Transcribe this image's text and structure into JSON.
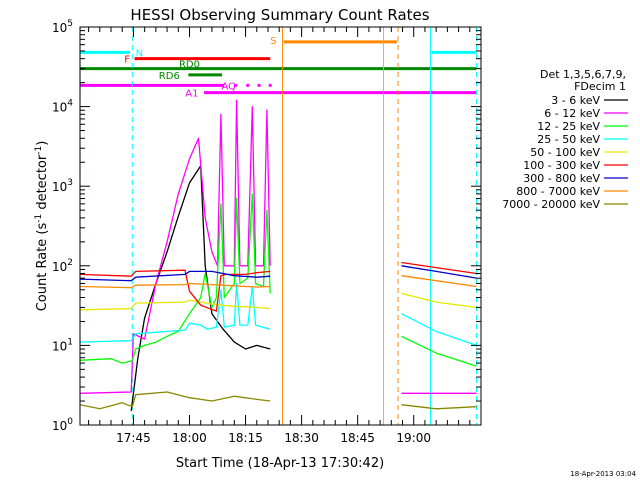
{
  "chart_data": {
    "type": "line",
    "title": "HESSI Observing Summary Count Rates",
    "xlabel": "Start Time (18-Apr-13 17:30:42)",
    "ylabel": "Count Rate (s⁻¹ detector⁻¹)",
    "ylabel_prefix": "Count Rate (s",
    "ylabel_mid": " detector",
    "ylabel_suffix": ")",
    "ylabel_sup": "-1",
    "yscale": "log",
    "ylim": [
      1,
      100000
    ],
    "xlim": [
      17.5117,
      19.3
    ],
    "grid": false,
    "x_ticks": [
      {
        "value": 17.75,
        "label": "17:45"
      },
      {
        "value": 18.0,
        "label": "18:00"
      },
      {
        "value": 18.25,
        "label": "18:15"
      },
      {
        "value": 18.5,
        "label": "18:30"
      },
      {
        "value": 18.75,
        "label": "18:45"
      },
      {
        "value": 19.0,
        "label": "19:00"
      }
    ],
    "y_ticks": [
      {
        "value": 1,
        "base": "10",
        "exp": "0"
      },
      {
        "value": 10,
        "base": "10",
        "exp": "1"
      },
      {
        "value": 100,
        "base": "10",
        "exp": "2"
      },
      {
        "value": 1000,
        "base": "10",
        "exp": "3"
      },
      {
        "value": 10000,
        "base": "10",
        "exp": "4"
      },
      {
        "value": 100000,
        "base": "10",
        "exp": "5"
      }
    ],
    "legend": {
      "placement": "right",
      "header": [
        "Det 1,3,5,6,7,9,",
        "FDecim 1"
      ],
      "entries": [
        {
          "label": "3 - 6 keV",
          "color": "#000000"
        },
        {
          "label": "6 - 12 keV",
          "color": "#ff00ff"
        },
        {
          "label": "12 - 25 keV",
          "color": "#00ff00"
        },
        {
          "label": "25 - 50 keV",
          "color": "#00ffff"
        },
        {
          "label": "50 - 100 keV",
          "color": "#e6e600"
        },
        {
          "label": "100 - 300 keV",
          "color": "#ff0000"
        },
        {
          "label": "300 - 800 keV",
          "color": "#0000cc"
        },
        {
          "label": "800 - 7000 keV",
          "color": "#ff8800"
        },
        {
          "label": "7000 - 20000 keV",
          "color": "#888800"
        }
      ]
    },
    "flags": [
      {
        "label": "N",
        "color": "#00ffff",
        "y": 48000,
        "segments": [
          [
            17.5117,
            17.735
          ],
          [
            19.08,
            19.28
          ]
        ]
      },
      {
        "label": "S",
        "color": "#ff8800",
        "y": 65000,
        "segments": [
          [
            18.42,
            18.925
          ]
        ]
      },
      {
        "label": "F",
        "color": "#ff0000",
        "y": 40000,
        "segments": [
          [
            17.755,
            18.36
          ]
        ]
      },
      {
        "label": "RD0",
        "color": "#008800",
        "y": 30000,
        "segments": [
          [
            17.5117,
            19.28
          ]
        ]
      },
      {
        "label": "RD6",
        "color": "#008800",
        "y": 25000,
        "segments": [
          [
            17.995,
            18.145
          ]
        ]
      },
      {
        "label": "AQ",
        "color": "#ff00ff",
        "y": 18500,
        "segments": [
          [
            17.5117,
            18.155
          ]
        ],
        "dots": [
          18.205,
          18.26,
          18.31,
          18.36
        ]
      },
      {
        "label": "A1",
        "color": "#ff00ff",
        "y": 15000,
        "segments": [
          [
            18.065,
            19.28
          ]
        ]
      }
    ],
    "vertical_lines": [
      {
        "x": 17.512,
        "color": "#00ffff",
        "style": "dashed"
      },
      {
        "x": 17.745,
        "color": "#00ffff",
        "style": "dashed"
      },
      {
        "x": 18.415,
        "color": "#ff8800",
        "style": "solid"
      },
      {
        "x": 18.865,
        "color": "#00ffff",
        "style": "solid"
      },
      {
        "x": 18.93,
        "color": "#ff8800",
        "style": "dashed"
      },
      {
        "x": 19.075,
        "color": "#00ffff",
        "style": "solid"
      },
      {
        "x": 19.28,
        "color": "#00ffff",
        "style": "dashed"
      }
    ],
    "series": [
      {
        "name": "3 - 6 keV",
        "color": "#000000",
        "segments": [
          [
            [
              17.74,
              1.5
            ],
            [
              17.77,
              7
            ],
            [
              17.8,
              22
            ],
            [
              17.85,
              60
            ],
            [
              17.9,
              150
            ],
            [
              17.95,
              420
            ],
            [
              18.0,
              1100
            ],
            [
              18.05,
              1800
            ],
            [
              18.07,
              100
            ],
            [
              18.1,
              25
            ],
            [
              18.15,
              16
            ],
            [
              18.2,
              11
            ],
            [
              18.25,
              9
            ],
            [
              18.3,
              10
            ],
            [
              18.36,
              9
            ]
          ]
        ]
      },
      {
        "name": "6 - 12 keV",
        "color": "#ff00ff",
        "segments": [
          [
            [
              17.5117,
              2.5
            ],
            [
              17.74,
              2.6
            ],
            [
              17.75,
              14
            ],
            [
              17.8,
              12
            ],
            [
              17.85,
              60
            ],
            [
              17.9,
              200
            ],
            [
              17.95,
              800
            ],
            [
              18.0,
              2200
            ],
            [
              18.04,
              4000
            ],
            [
              18.07,
              400
            ],
            [
              18.1,
              150
            ],
            [
              18.125,
              100
            ],
            [
              18.14,
              8000
            ],
            [
              18.155,
              100
            ],
            [
              18.2,
              100
            ],
            [
              18.21,
              12000
            ],
            [
              18.225,
              100
            ],
            [
              18.26,
              100
            ],
            [
              18.28,
              10000
            ],
            [
              18.295,
              100
            ],
            [
              18.33,
              100
            ],
            [
              18.345,
              9000
            ],
            [
              18.36,
              100
            ]
          ],
          [
            [
              18.945,
              2.5
            ],
            [
              19.28,
              2.5
            ]
          ]
        ]
      },
      {
        "name": "12 - 25 keV",
        "color": "#00ff00",
        "segments": [
          [
            [
              17.5117,
              6.5
            ],
            [
              17.65,
              6.8
            ],
            [
              17.7,
              6
            ],
            [
              17.745,
              6.4
            ],
            [
              17.76,
              9
            ],
            [
              17.8,
              10
            ],
            [
              17.85,
              11
            ],
            [
              17.9,
              13
            ],
            [
              17.95,
              15
            ],
            [
              18.0,
              25
            ],
            [
              18.05,
              40
            ],
            [
              18.07,
              80
            ],
            [
              18.1,
              30
            ],
            [
              18.12,
              40
            ],
            [
              18.14,
              600
            ],
            [
              18.155,
              40
            ],
            [
              18.2,
              60
            ],
            [
              18.21,
              700
            ],
            [
              18.225,
              60
            ],
            [
              18.26,
              70
            ],
            [
              18.28,
              800
            ],
            [
              18.295,
              60
            ],
            [
              18.33,
              55
            ],
            [
              18.345,
              500
            ],
            [
              18.36,
              45
            ]
          ],
          [
            [
              18.945,
              13
            ],
            [
              19.1,
              8
            ],
            [
              19.28,
              5.5
            ]
          ]
        ]
      },
      {
        "name": "25 - 50 keV",
        "color": "#00ffff",
        "segments": [
          [
            [
              17.5117,
              11
            ],
            [
              17.74,
              11.5
            ],
            [
              17.76,
              14
            ],
            [
              17.9,
              15
            ],
            [
              17.98,
              15.5
            ],
            [
              18.0,
              19
            ],
            [
              18.05,
              18
            ],
            [
              18.08,
              16
            ],
            [
              18.12,
              17
            ],
            [
              18.14,
              50
            ],
            [
              18.155,
              17
            ],
            [
              18.2,
              18
            ],
            [
              18.21,
              60
            ],
            [
              18.225,
              18
            ],
            [
              18.26,
              18
            ],
            [
              18.28,
              55
            ],
            [
              18.295,
              18
            ],
            [
              18.36,
              16
            ]
          ],
          [
            [
              18.945,
              25
            ],
            [
              19.1,
              15
            ],
            [
              19.28,
              10
            ]
          ]
        ]
      },
      {
        "name": "50 - 100 keV",
        "color": "#e6e600",
        "segments": [
          [
            [
              17.5117,
              28
            ],
            [
              17.74,
              29
            ],
            [
              17.76,
              34
            ],
            [
              17.98,
              35
            ],
            [
              18.0,
              37
            ],
            [
              18.1,
              33
            ],
            [
              18.2,
              31
            ],
            [
              18.3,
              30
            ],
            [
              18.36,
              29
            ]
          ],
          [
            [
              18.945,
              45
            ],
            [
              19.1,
              35
            ],
            [
              19.28,
              30
            ]
          ]
        ]
      },
      {
        "name": "100 - 300 keV",
        "color": "#ff0000",
        "segments": [
          [
            [
              17.5117,
              78
            ],
            [
              17.74,
              74
            ],
            [
              17.76,
              85
            ],
            [
              17.98,
              88
            ],
            [
              18.0,
              48
            ],
            [
              18.05,
              32
            ],
            [
              18.12,
              27
            ],
            [
              18.14,
              75
            ],
            [
              18.16,
              78
            ],
            [
              18.25,
              78
            ],
            [
              18.3,
              82
            ],
            [
              18.36,
              85
            ]
          ],
          [
            [
              18.945,
              110
            ],
            [
              19.1,
              95
            ],
            [
              19.28,
              80
            ]
          ]
        ]
      },
      {
        "name": "300 - 800 keV",
        "color": "#0000cc",
        "segments": [
          [
            [
              17.5117,
              68
            ],
            [
              17.74,
              65
            ],
            [
              17.76,
              72
            ],
            [
              17.98,
              78
            ],
            [
              18.0,
              85
            ],
            [
              18.1,
              85
            ],
            [
              18.2,
              75
            ],
            [
              18.3,
              72
            ],
            [
              18.36,
              74
            ]
          ],
          [
            [
              18.945,
              100
            ],
            [
              19.1,
              85
            ],
            [
              19.28,
              70
            ]
          ]
        ]
      },
      {
        "name": "800 - 7000 keV",
        "color": "#ff8800",
        "segments": [
          [
            [
              17.5117,
              55
            ],
            [
              17.74,
              53
            ],
            [
              17.76,
              57
            ],
            [
              17.98,
              58
            ],
            [
              18.0,
              60
            ],
            [
              18.1,
              58
            ],
            [
              18.2,
              56
            ],
            [
              18.3,
              54
            ],
            [
              18.36,
              55
            ]
          ],
          [
            [
              18.945,
              75
            ],
            [
              19.1,
              65
            ],
            [
              19.28,
              55
            ]
          ]
        ]
      },
      {
        "name": "7000 - 20000 keV",
        "color": "#888800",
        "segments": [
          [
            [
              17.5117,
              1.8
            ],
            [
              17.6,
              1.6
            ],
            [
              17.7,
              1.9
            ],
            [
              17.745,
              1.7
            ],
            [
              17.76,
              2.4
            ],
            [
              17.9,
              2.6
            ],
            [
              18.0,
              2.2
            ],
            [
              18.1,
              2.0
            ],
            [
              18.2,
              2.3
            ],
            [
              18.3,
              2.1
            ],
            [
              18.36,
              2.0
            ]
          ],
          [
            [
              18.945,
              1.8
            ],
            [
              19.1,
              1.6
            ],
            [
              19.28,
              1.7
            ]
          ]
        ]
      }
    ]
  },
  "footer_timestamp": "18-Apr-2013 03:04"
}
